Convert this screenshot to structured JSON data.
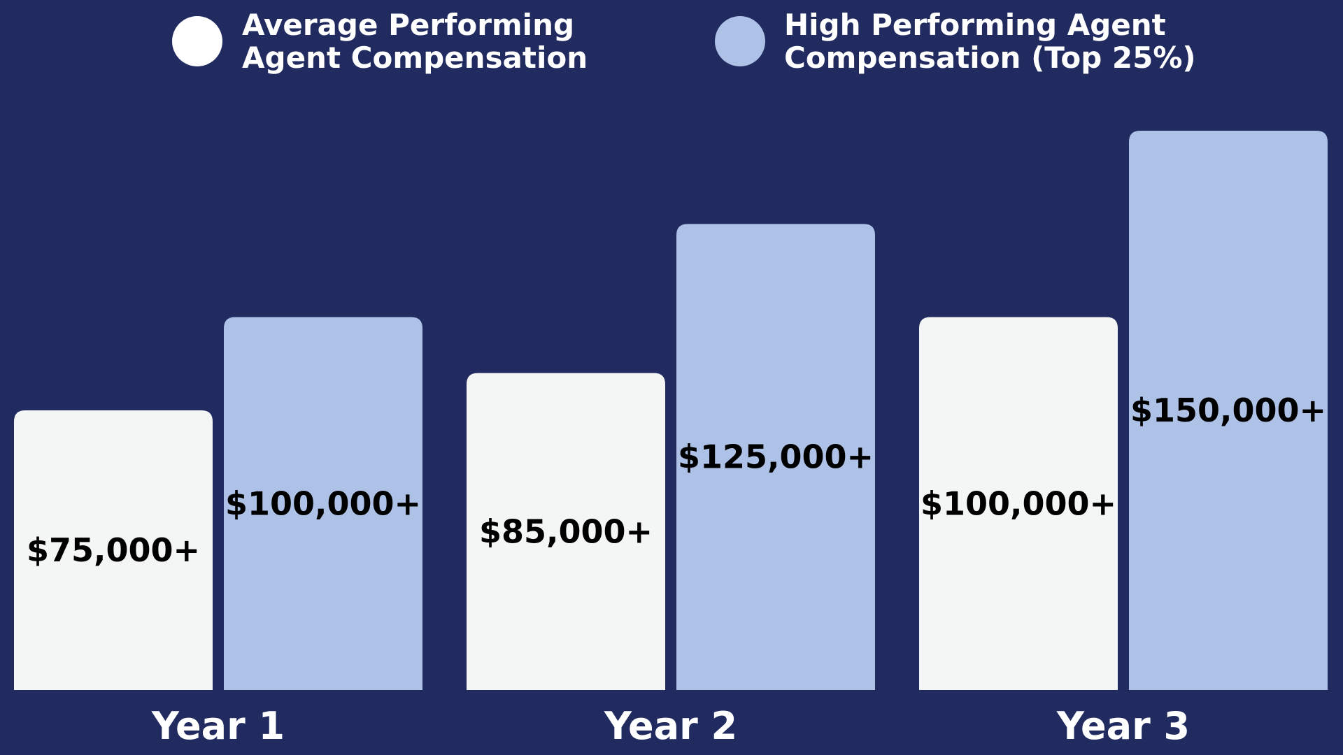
{
  "colors": {
    "background": "#212b60",
    "average": "#f4f6f6",
    "high": "#adc2e6",
    "label_text": "#000000",
    "axis_text": "#ffffff"
  },
  "chart_data": {
    "type": "bar",
    "title": "",
    "xlabel": "",
    "ylabel": "",
    "categories": [
      "Year 1",
      "Year 2",
      "Year 3"
    ],
    "series": [
      {
        "name": "Average Performing Agent Compensation",
        "legend_lines": [
          "Average Performing",
          "Agent Compensation"
        ],
        "values": [
          75000,
          85000,
          100000
        ],
        "labels": [
          "$75,000+",
          "$85,000+",
          "$100,000+"
        ],
        "color": "#f4f6f6"
      },
      {
        "name": "High Performing Agent Compensation (Top 25%)",
        "legend_lines": [
          "High Performing Agent",
          "Compensation (Top 25%)"
        ],
        "values": [
          100000,
          125000,
          150000
        ],
        "labels": [
          "$100,000+",
          "$125,000+",
          "$150,000+"
        ],
        "color": "#adc2e6"
      }
    ],
    "ylim": [
      0,
      150000
    ],
    "grid": false,
    "legend": "top"
  }
}
